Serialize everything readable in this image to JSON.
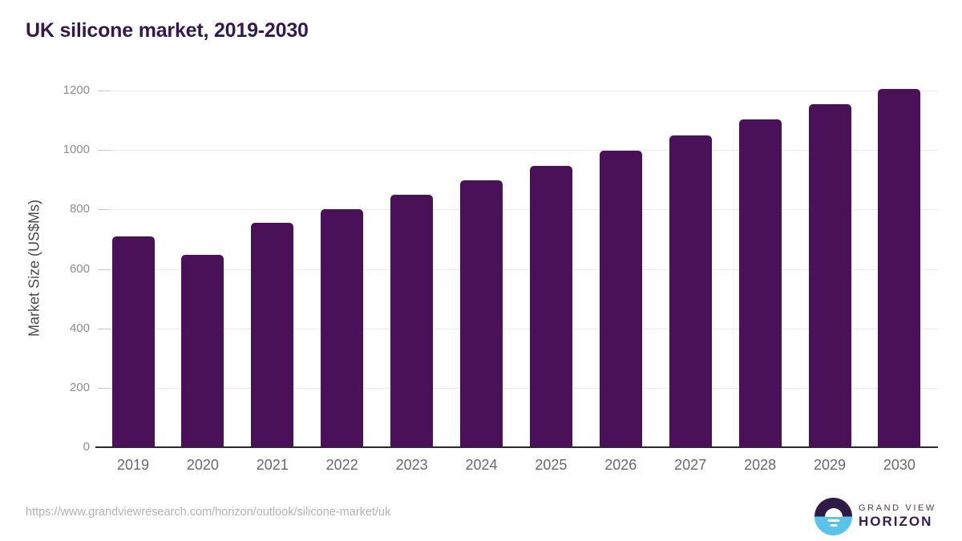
{
  "title": "UK silicone market, 2019-2030",
  "footer": {
    "source_url": "https://www.grandviewresearch.com/horizon/outlook/silicone-market/uk"
  },
  "logo": {
    "top_text": "GRAND VIEW",
    "bottom_text": "HORIZON"
  },
  "colors": {
    "bar": "#4a1158",
    "title": "#35184e",
    "grid": "#ebebeb",
    "tick": "#c6c6c6",
    "axisline": "#2b2b2b",
    "ylabel": "#8d8d8d",
    "xlabel": "#686868",
    "axis-title": "#4a4a4a",
    "url": "#b3b3b3",
    "logo-dark": "#2d1a46",
    "logo-blue": "#58c4eb"
  },
  "chart_data": {
    "type": "bar",
    "categories": [
      "2019",
      "2020",
      "2021",
      "2022",
      "2023",
      "2024",
      "2025",
      "2026",
      "2027",
      "2028",
      "2029",
      "2030"
    ],
    "values": [
      710,
      646,
      755,
      801,
      850,
      899,
      947,
      999,
      1050,
      1104,
      1155,
      1206
    ],
    "title": "UK silicone market, 2019-2030",
    "xlabel": "",
    "ylabel": "Market Size (US$Ms)",
    "ylim": [
      0,
      1200
    ],
    "yticks": [
      0,
      200,
      400,
      600,
      800,
      1000,
      1200
    ],
    "grid": true,
    "legend": false,
    "bar_color": "#4a1158"
  }
}
